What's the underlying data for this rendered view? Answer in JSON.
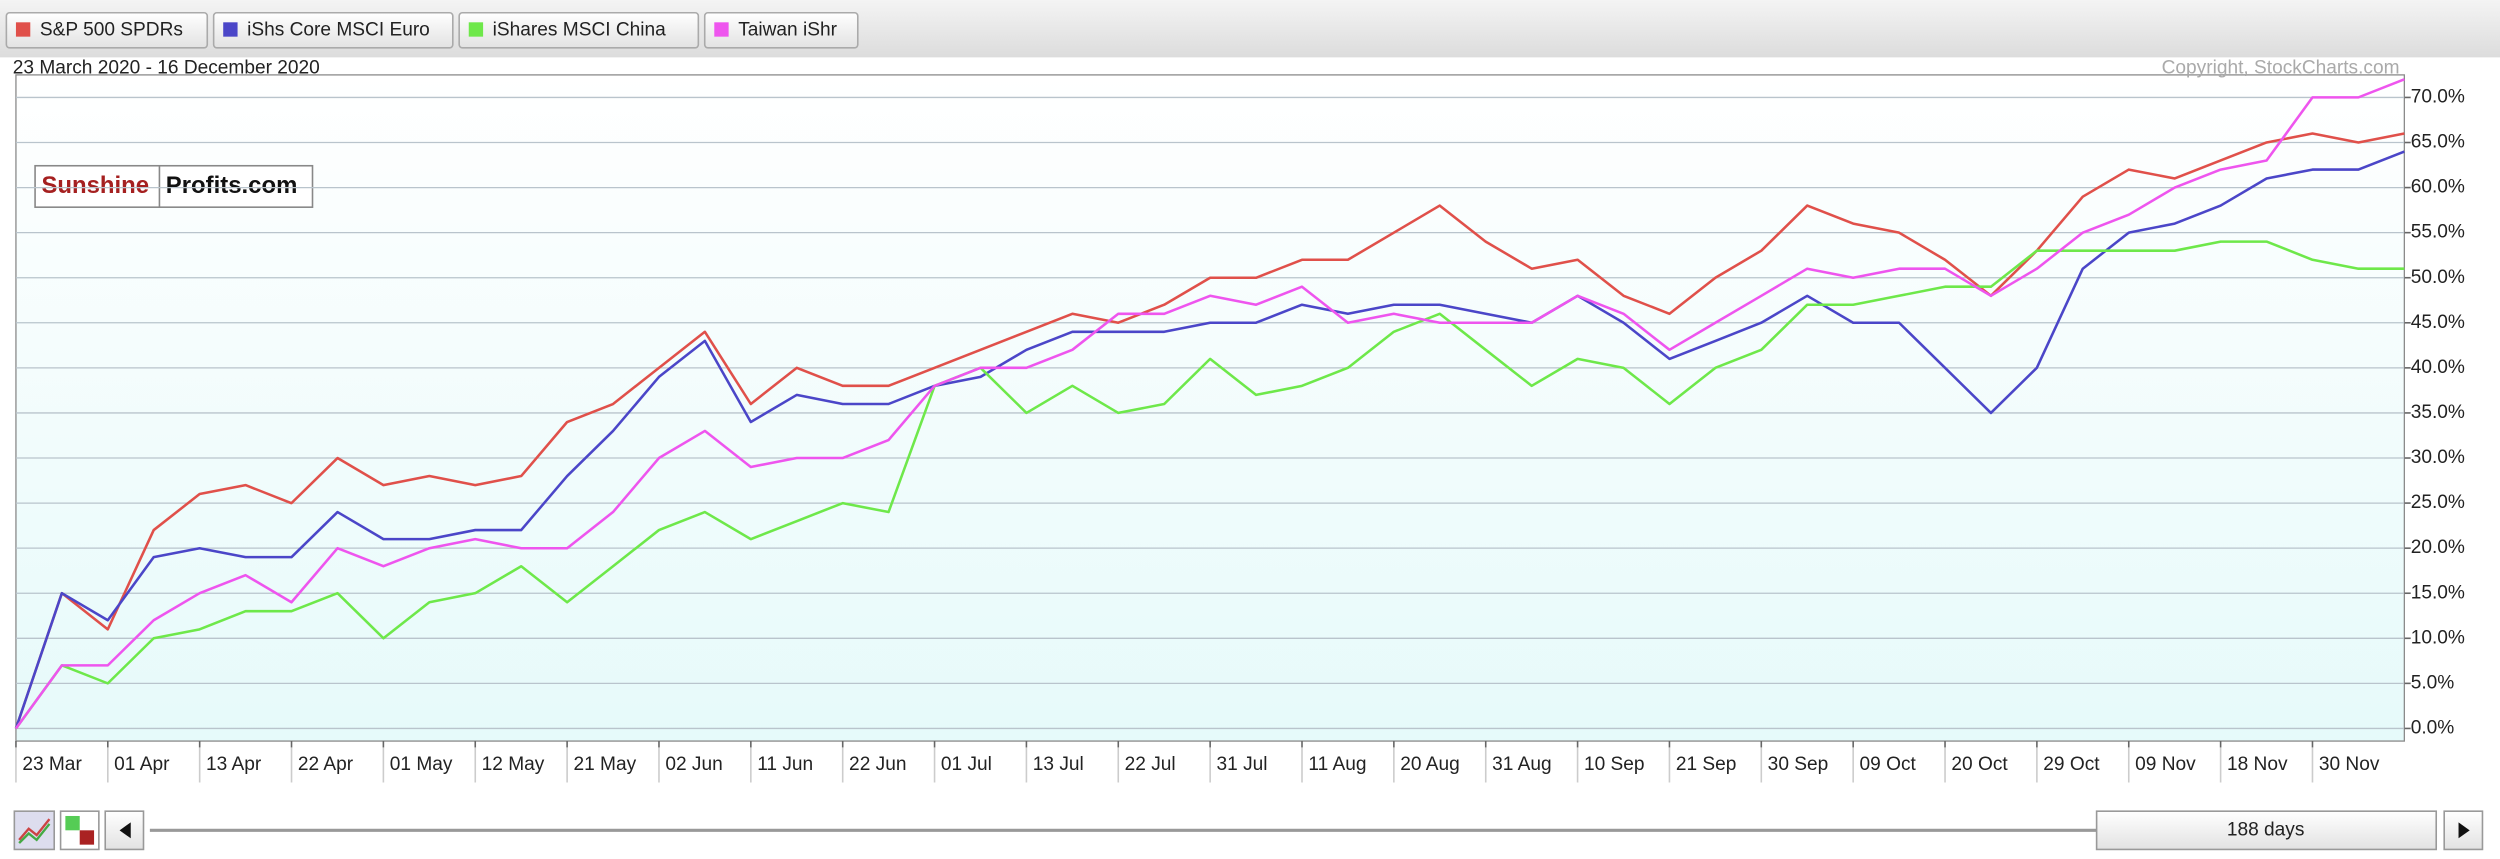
{
  "chart_data": {
    "type": "line",
    "subtitle": "23 March 2020 - 16 December 2020",
    "annotation": "Copyright, StockCharts.com",
    "categories": [
      "23 Mar",
      null,
      "01 Apr",
      null,
      "13 Apr",
      null,
      "22 Apr",
      null,
      "01 May",
      null,
      "12 May",
      null,
      "21 May",
      null,
      "02 Jun",
      null,
      "11 Jun",
      null,
      "22 Jun",
      null,
      "01 Jul",
      null,
      "13 Jul",
      null,
      "22 Jul",
      null,
      "31 Jul",
      null,
      "11 Aug",
      null,
      "20 Aug",
      null,
      "31 Aug",
      null,
      "10 Sep",
      null,
      "21 Sep",
      null,
      "30 Sep",
      null,
      "09 Oct",
      null,
      "20 Oct",
      null,
      "29 Oct",
      null,
      "09 Nov",
      null,
      "18 Nov",
      null,
      "30 Nov",
      null,
      null
    ],
    "series": [
      {
        "name": "S&P 500 SPDRs",
        "color": "#e0504a",
        "values": [
          0,
          15,
          11,
          22,
          26,
          27,
          25,
          30,
          27,
          28,
          27,
          28,
          34,
          36,
          40,
          44,
          36,
          40,
          38,
          38,
          40,
          42,
          44,
          46,
          45,
          47,
          50,
          50,
          52,
          52,
          55,
          58,
          54,
          51,
          52,
          48,
          46,
          50,
          53,
          58,
          56,
          55,
          52,
          48,
          53,
          59,
          62,
          61,
          63,
          65,
          66,
          65,
          66
        ]
      },
      {
        "name": "iShs Core MSCI Euro",
        "color": "#4b46c8",
        "values": [
          0,
          15,
          12,
          19,
          20,
          19,
          19,
          24,
          21,
          21,
          22,
          22,
          28,
          33,
          39,
          43,
          34,
          37,
          36,
          36,
          38,
          39,
          42,
          44,
          44,
          44,
          45,
          45,
          47,
          46,
          47,
          47,
          46,
          45,
          48,
          45,
          41,
          43,
          45,
          48,
          45,
          45,
          40,
          35,
          40,
          51,
          55,
          56,
          58,
          61,
          62,
          62,
          64
        ]
      },
      {
        "name": "iShares MSCI China",
        "color": "#6ee84a",
        "values": [
          0,
          7,
          5,
          10,
          11,
          13,
          13,
          15,
          10,
          14,
          15,
          18,
          14,
          18,
          22,
          24,
          21,
          23,
          25,
          24,
          38,
          40,
          35,
          38,
          35,
          36,
          41,
          37,
          38,
          40,
          44,
          46,
          42,
          38,
          41,
          40,
          36,
          40,
          42,
          47,
          47,
          48,
          49,
          49,
          53,
          53,
          53,
          53,
          54,
          54,
          52,
          51,
          51
        ]
      },
      {
        "name": "Taiwan iShr",
        "color": "#ee55ee",
        "values": [
          0,
          7,
          7,
          12,
          15,
          17,
          14,
          20,
          18,
          20,
          21,
          20,
          20,
          24,
          30,
          33,
          29,
          30,
          30,
          32,
          38,
          40,
          40,
          42,
          46,
          46,
          48,
          47,
          49,
          45,
          46,
          45,
          45,
          45,
          48,
          46,
          42,
          45,
          48,
          51,
          50,
          51,
          51,
          48,
          51,
          55,
          57,
          60,
          62,
          63,
          70,
          70,
          72
        ]
      }
    ],
    "ylim": [
      -1.4,
      72.5
    ],
    "yticks": [
      {
        "value": 0,
        "label": "0.0%"
      },
      {
        "value": 5,
        "label": "5.0%"
      },
      {
        "value": 10,
        "label": "10.0%"
      },
      {
        "value": 15,
        "label": "15.0%"
      },
      {
        "value": 20,
        "label": "20.0%"
      },
      {
        "value": 25,
        "label": "25.0%"
      },
      {
        "value": 30,
        "label": "30.0%"
      },
      {
        "value": 35,
        "label": "35.0%"
      },
      {
        "value": 40,
        "label": "40.0%"
      },
      {
        "value": 45,
        "label": "45.0%"
      },
      {
        "value": 50,
        "label": "50.0%"
      },
      {
        "value": 55,
        "label": "55.0%"
      },
      {
        "value": 60,
        "label": "60.0%"
      },
      {
        "value": 65,
        "label": "65.0%"
      },
      {
        "value": 70,
        "label": "70.0%"
      }
    ],
    "grid": true
  },
  "ui": {
    "watermark": [
      "Sunshine",
      "Profits.com"
    ],
    "range_label": "188 days"
  }
}
